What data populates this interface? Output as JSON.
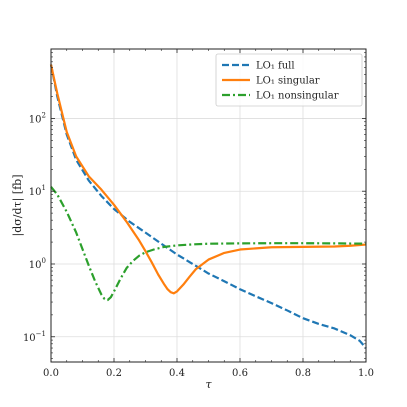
{
  "chart_data": {
    "type": "line",
    "xlabel": "τ",
    "ylabel": "|dσ/dτ| [fb]",
    "xlim": [
      0.0,
      1.0
    ],
    "ylim": [
      0.045,
      900
    ],
    "yscale": "log",
    "grid": true,
    "legend_position": "top-right",
    "x_ticks": [
      {
        "value": 0.0,
        "label": "0.0"
      },
      {
        "value": 0.2,
        "label": "0.2"
      },
      {
        "value": 0.4,
        "label": "0.4"
      },
      {
        "value": 0.6,
        "label": "0.6"
      },
      {
        "value": 0.8,
        "label": "0.8"
      },
      {
        "value": 1.0,
        "label": "1.0"
      }
    ],
    "y_ticks": [
      {
        "value": 0.1,
        "base": "10",
        "exp": "−1"
      },
      {
        "value": 1,
        "base": "10",
        "exp": "0"
      },
      {
        "value": 10,
        "base": "10",
        "exp": "1"
      },
      {
        "value": 100,
        "base": "10",
        "exp": "2"
      }
    ],
    "series": [
      {
        "name": "LO₁ full",
        "color": "#1f77b4",
        "dash": "dashed",
        "x": [
          0.0,
          0.02,
          0.05,
          0.08,
          0.12,
          0.16,
          0.2,
          0.25,
          0.3,
          0.35,
          0.4,
          0.45,
          0.5,
          0.55,
          0.6,
          0.65,
          0.7,
          0.75,
          0.8,
          0.85,
          0.9,
          0.95,
          0.98,
          1.0
        ],
        "y": [
          550,
          200,
          60,
          27,
          14,
          8.6,
          5.7,
          3.8,
          2.7,
          1.9,
          1.35,
          1.0,
          0.74,
          0.58,
          0.45,
          0.36,
          0.29,
          0.23,
          0.18,
          0.15,
          0.13,
          0.105,
          0.088,
          0.07
        ]
      },
      {
        "name": "LO₁ singular",
        "color": "#ff7f0e",
        "dash": "solid",
        "x": [
          0.0,
          0.02,
          0.05,
          0.08,
          0.12,
          0.16,
          0.2,
          0.24,
          0.28,
          0.3,
          0.32,
          0.34,
          0.36,
          0.37,
          0.38,
          0.39,
          0.4,
          0.42,
          0.44,
          0.46,
          0.5,
          0.55,
          0.6,
          0.7,
          0.8,
          0.9,
          0.95,
          1.0
        ],
        "y": [
          550,
          220,
          65,
          30,
          16,
          10.5,
          6.5,
          3.8,
          2.1,
          1.5,
          1.05,
          0.72,
          0.52,
          0.45,
          0.41,
          0.395,
          0.42,
          0.52,
          0.67,
          0.85,
          1.15,
          1.42,
          1.58,
          1.7,
          1.72,
          1.74,
          1.78,
          1.85
        ]
      },
      {
        "name": "LO₁ nonsingular",
        "color": "#2ca02c",
        "dash": "dashdot",
        "x": [
          0.0,
          0.02,
          0.05,
          0.08,
          0.1,
          0.12,
          0.14,
          0.16,
          0.17,
          0.18,
          0.19,
          0.2,
          0.22,
          0.24,
          0.26,
          0.28,
          0.3,
          0.33,
          0.36,
          0.4,
          0.45,
          0.5,
          0.6,
          0.7,
          0.8,
          0.9,
          1.0
        ],
        "y": [
          11.5,
          9.0,
          5.2,
          2.7,
          1.6,
          0.95,
          0.58,
          0.38,
          0.33,
          0.32,
          0.35,
          0.42,
          0.62,
          0.88,
          1.1,
          1.3,
          1.45,
          1.6,
          1.72,
          1.8,
          1.86,
          1.9,
          1.92,
          1.93,
          1.93,
          1.92,
          1.9
        ]
      }
    ]
  }
}
